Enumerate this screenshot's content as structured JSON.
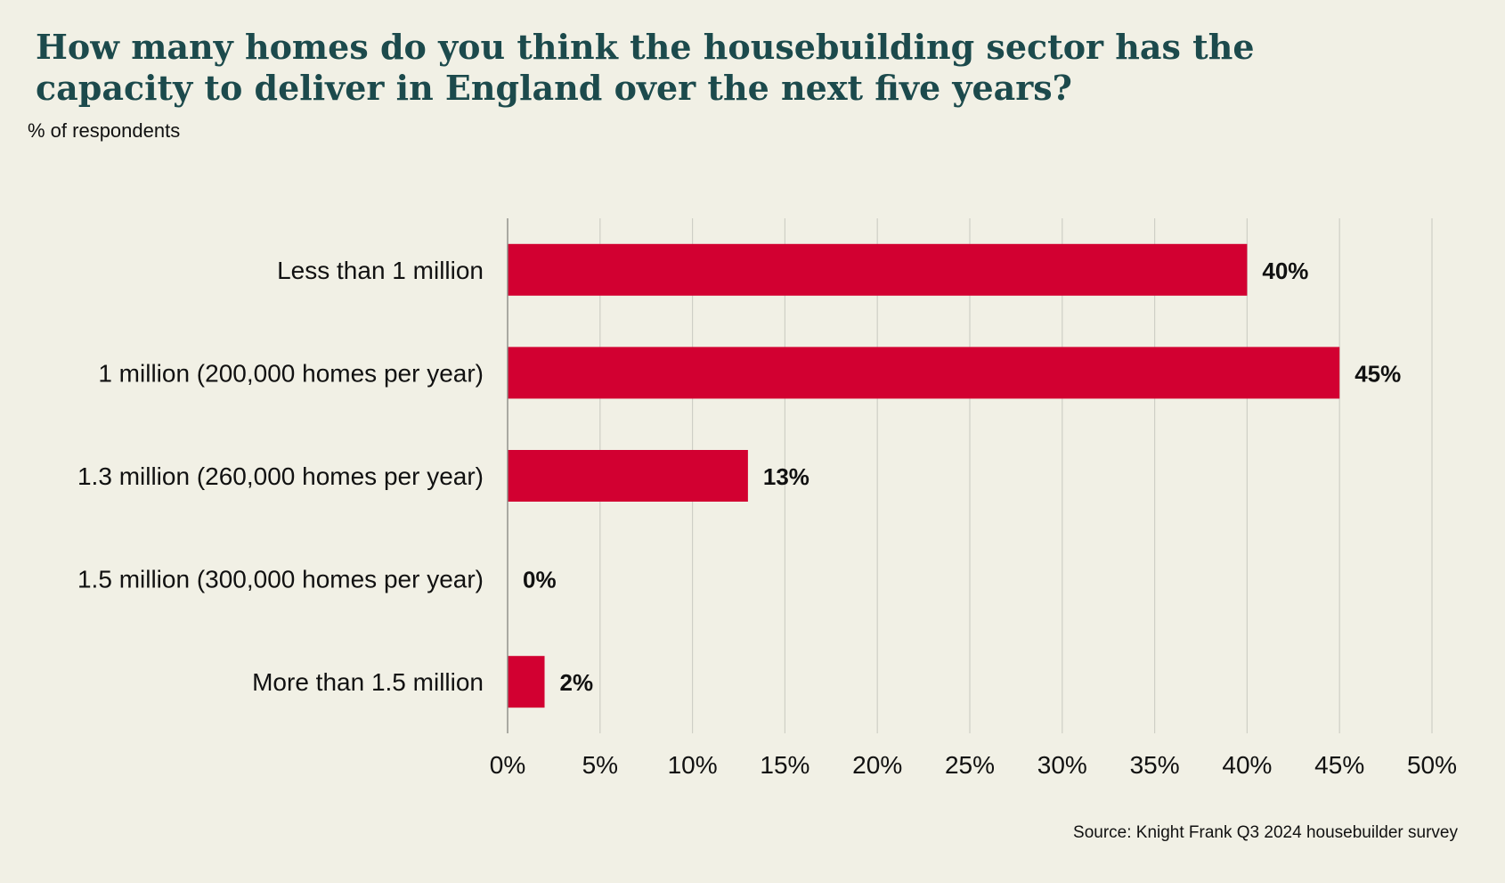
{
  "header": {
    "title": "How many homes do you think the housebuilding sector has the capacity to deliver in England over the next five years?",
    "subtitle": "% of respondents"
  },
  "footer": {
    "source": "Source: Knight Frank Q3 2024 housebuilder survey"
  },
  "colors": {
    "bar": "#d20031",
    "grid": "#cfcfc6",
    "axis": "#8c8c86",
    "title": "#1c4a4c",
    "background": "#f1f0e5"
  },
  "chart_data": {
    "type": "bar",
    "orientation": "horizontal",
    "title": "How many homes do you think the housebuilding sector has the capacity to deliver in England over the next five years?",
    "subtitle": "% of respondents",
    "categories": [
      "Less than 1 million",
      "1 million (200,000 homes per year)",
      "1.3 million (260,000 homes per year)",
      "1.5 million (300,000 homes per year)",
      "More than 1.5 million"
    ],
    "values": [
      40,
      45,
      13,
      0,
      2
    ],
    "data_labels": [
      "40%",
      "45%",
      "13%",
      "0%",
      "2%"
    ],
    "xlim": [
      0,
      50
    ],
    "x_ticks": [
      0,
      5,
      10,
      15,
      20,
      25,
      30,
      35,
      40,
      45,
      50
    ],
    "x_tick_labels": [
      "0%",
      "5%",
      "10%",
      "15%",
      "20%",
      "25%",
      "30%",
      "35%",
      "40%",
      "45%",
      "50%"
    ],
    "grid": true,
    "legend": "none"
  }
}
